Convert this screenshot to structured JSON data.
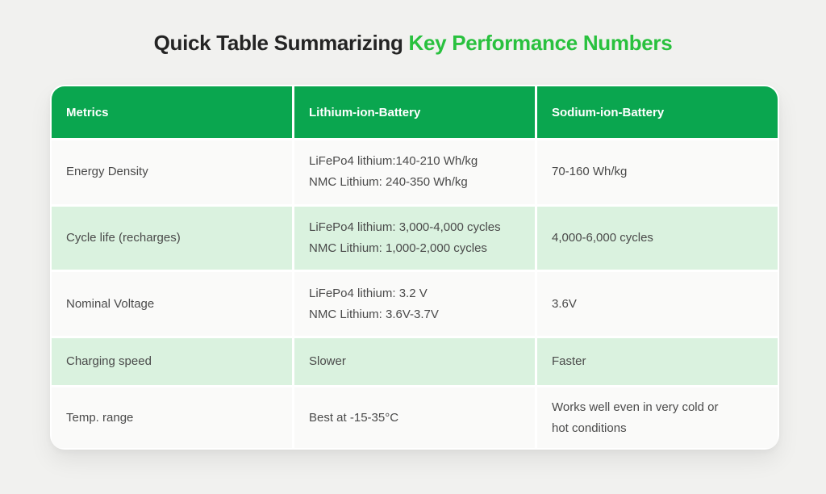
{
  "title": {
    "prefix": "Quick Table Summarizing ",
    "highlight": "Key Performance Numbers"
  },
  "colors": {
    "header_green": "#0aa64f",
    "row_light_green": "#daf2df",
    "row_off_white": "#fafaf9",
    "title_highlight_green": "#29c13e",
    "page_background": "#f1f1ef",
    "header_text": "#ffffff",
    "body_text": "#4a4a4a"
  },
  "chart_data": {
    "type": "table",
    "title": "Quick Table Summarizing Key Performance Numbers",
    "columns": [
      "Metrics",
      "Lithium-ion-Battery",
      "Sodium-ion-Battery"
    ],
    "rows": [
      {
        "cells": [
          [
            "Energy Density"
          ],
          [
            "LiFePo4 lithium:140-210 Wh/kg",
            "NMC Lithium: 240-350 Wh/kg"
          ],
          [
            "70-160 Wh/kg"
          ]
        ]
      },
      {
        "cells": [
          [
            "Cycle life (recharges)"
          ],
          [
            "LiFePo4 lithium: 3,000-4,000 cycles",
            "NMC Lithium: 1,000-2,000 cycles"
          ],
          [
            "4,000-6,000 cycles"
          ]
        ]
      },
      {
        "cells": [
          [
            "Nominal Voltage"
          ],
          [
            "LiFePo4 lithium: 3.2 V",
            "NMC Lithium: 3.6V-3.7V"
          ],
          [
            "3.6V"
          ]
        ]
      },
      {
        "cells": [
          [
            "Charging speed"
          ],
          [
            "Slower"
          ],
          [
            "Faster"
          ]
        ]
      },
      {
        "cells": [
          [
            "Temp. range"
          ],
          [
            "Best at -15-35°C"
          ],
          [
            "Works well even in very cold or",
            "hot conditions"
          ]
        ]
      }
    ]
  }
}
